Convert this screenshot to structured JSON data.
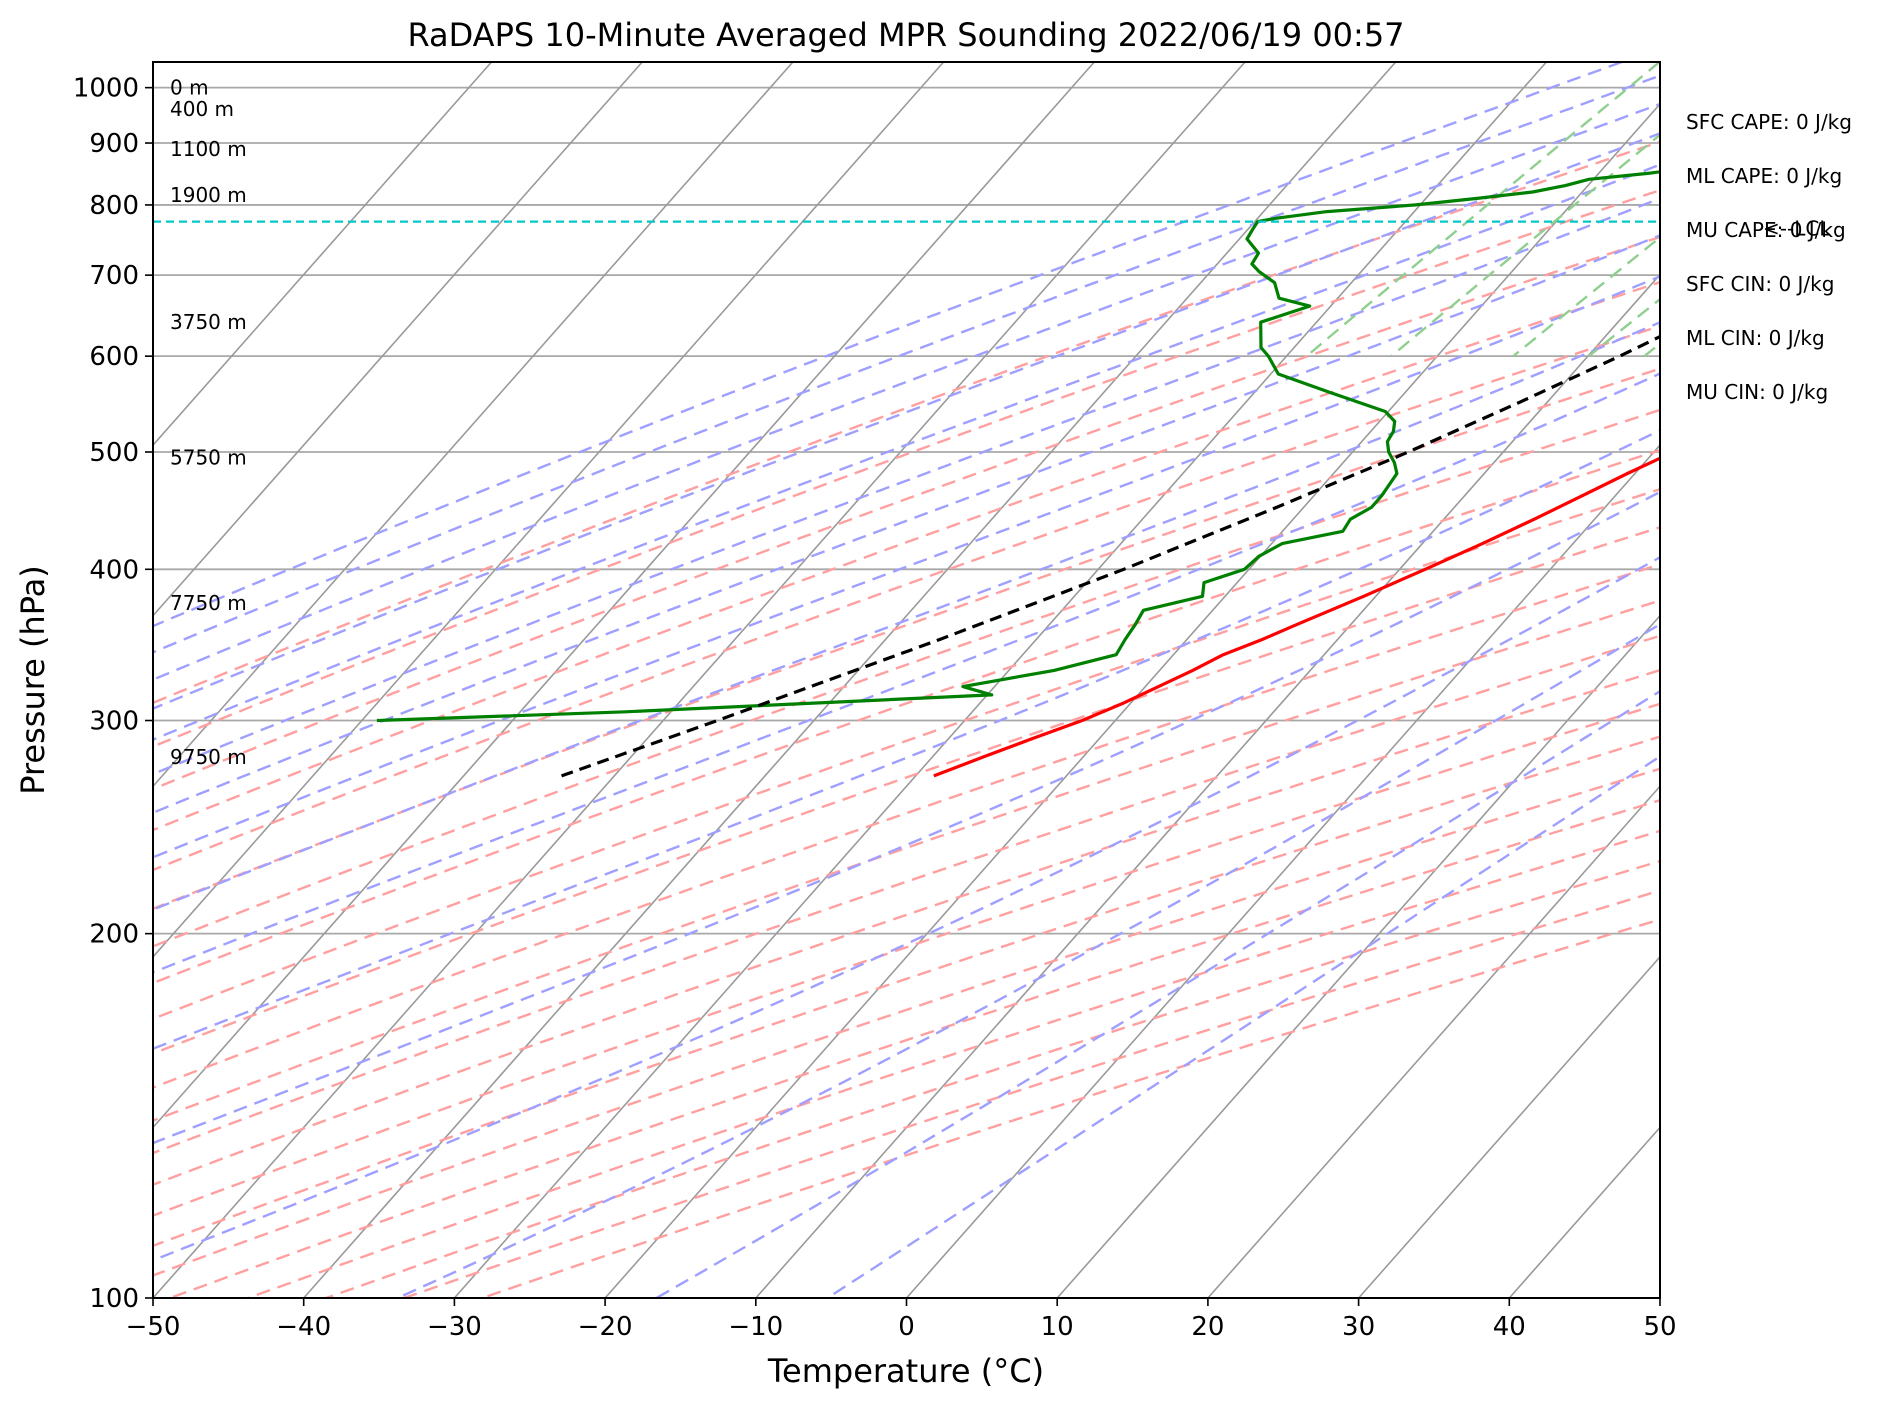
{
  "chart_data": {
    "type": "line",
    "title": "RaDAPS 10-Minute Averaged MPR Sounding 2022/06/19 00:57",
    "xlabel": "Temperature (°C)",
    "ylabel": "Pressure (hPa)",
    "xlim": [
      -50,
      50
    ],
    "ylim": [
      1050,
      100
    ],
    "y_scale": "log",
    "x_ticks": [
      -50,
      -40,
      -30,
      -20,
      -10,
      0,
      10,
      20,
      30,
      40,
      50
    ],
    "x_tick_labels": [
      "−50",
      "−40",
      "−30",
      "−20",
      "−10",
      "0",
      "10",
      "20",
      "30",
      "40",
      "50"
    ],
    "y_ticks": [
      1000,
      900,
      800,
      700,
      600,
      500,
      400,
      300,
      200,
      100
    ],
    "y_tick_labels": [
      "1000",
      "900",
      "800",
      "700",
      "600",
      "500",
      "400",
      "300",
      "200",
      "100"
    ],
    "grid": "horizontal at pressure ticks",
    "skew_lines": [
      -100,
      -90,
      -80,
      -70,
      -60,
      -50,
      -40,
      -30,
      -20,
      -10,
      0,
      10,
      20,
      30,
      40
    ],
    "dry_adiabats_theta_K": [
      263,
      273,
      283,
      293,
      303,
      313,
      323,
      333,
      343,
      353,
      363,
      373,
      383,
      393,
      403,
      413,
      423,
      433,
      443,
      453,
      463,
      473
    ],
    "moist_adiabats_start_C": [
      -25,
      -20,
      -15,
      -10,
      -5,
      0,
      5,
      10,
      15,
      20,
      25,
      30,
      35,
      40,
      45,
      50
    ],
    "mixing_ratios_gkg": [
      0.6,
      1,
      2,
      3,
      4,
      6,
      8,
      10,
      12,
      16,
      20
    ],
    "series": [
      {
        "name": "",
        "color": "#ff0000",
        "points": [
          [
            1000,
            29.5
          ],
          [
            980,
            28.2
          ],
          [
            960,
            27.2
          ],
          [
            930,
            26.0
          ],
          [
            900,
            25.1
          ],
          [
            880,
            23.6
          ],
          [
            860,
            22.7
          ],
          [
            840,
            21.8
          ],
          [
            830,
            21.4
          ],
          [
            820,
            20.9
          ],
          [
            800,
            20.2
          ],
          [
            780,
            19.4
          ],
          [
            760,
            18.7
          ],
          [
            740,
            17.8
          ],
          [
            720,
            16.9
          ],
          [
            700,
            16.3
          ],
          [
            680,
            15.3
          ],
          [
            660,
            13.9
          ],
          [
            640,
            12.4
          ],
          [
            620,
            11.0
          ],
          [
            600,
            9.8
          ],
          [
            580,
            8.4
          ],
          [
            560,
            7.2
          ],
          [
            540,
            5.5
          ],
          [
            520,
            3.5
          ],
          [
            500,
            1.3
          ],
          [
            480,
            -0.5
          ],
          [
            460,
            -2.2
          ],
          [
            440,
            -4.0
          ],
          [
            420,
            -6.0
          ],
          [
            400,
            -8.3
          ],
          [
            380,
            -10.8
          ],
          [
            360,
            -13.6
          ],
          [
            350,
            -15.0
          ],
          [
            340,
            -16.7
          ],
          [
            330,
            -17.8
          ],
          [
            310,
            -20.5
          ],
          [
            300,
            -22.2
          ],
          [
            290,
            -24.4
          ],
          [
            280,
            -26.6
          ],
          [
            270,
            -28.8
          ]
        ]
      },
      {
        "name": "",
        "color": "#008000",
        "points": [
          [
            1000,
            11.3
          ],
          [
            998,
            8.5
          ],
          [
            995,
            5.6
          ],
          [
            990,
            3.6
          ],
          [
            980,
            2.0
          ],
          [
            970,
            2.4
          ],
          [
            960,
            1.8
          ],
          [
            950,
            1.5
          ],
          [
            940,
            0.9
          ],
          [
            930,
            0.9
          ],
          [
            920,
            -0.6
          ],
          [
            910,
            -2.4
          ],
          [
            900,
            -3.8
          ],
          [
            885,
            -6.6
          ],
          [
            870,
            -10.2
          ],
          [
            860,
            -13.8
          ],
          [
            850,
            -16.6
          ],
          [
            840,
            -20.3
          ],
          [
            830,
            -21.5
          ],
          [
            820,
            -23.3
          ],
          [
            810,
            -26.6
          ],
          [
            800,
            -30.3
          ],
          [
            790,
            -35.8
          ],
          [
            780,
            -38.8
          ],
          [
            775,
            -39.8
          ],
          [
            765,
            -39.7
          ],
          [
            750,
            -39.5
          ],
          [
            730,
            -37.9
          ],
          [
            715,
            -37.7
          ],
          [
            705,
            -36.8
          ],
          [
            690,
            -35.1
          ],
          [
            670,
            -33.9
          ],
          [
            660,
            -31.4
          ],
          [
            640,
            -33.7
          ],
          [
            610,
            -32.2
          ],
          [
            600,
            -31.2
          ],
          [
            580,
            -29.5
          ],
          [
            560,
            -25.0
          ],
          [
            540,
            -20.2
          ],
          [
            530,
            -19.0
          ],
          [
            520,
            -18.5
          ],
          [
            510,
            -18.3
          ],
          [
            500,
            -17.6
          ],
          [
            490,
            -16.6
          ],
          [
            480,
            -15.8
          ],
          [
            460,
            -15.5
          ],
          [
            450,
            -15.5
          ],
          [
            440,
            -16.2
          ],
          [
            430,
            -16.0
          ],
          [
            420,
            -19.3
          ],
          [
            410,
            -20.1
          ],
          [
            400,
            -20.3
          ],
          [
            390,
            -22.2
          ],
          [
            380,
            -21.5
          ],
          [
            370,
            -24.6
          ],
          [
            360,
            -24.3
          ],
          [
            350,
            -24.1
          ],
          [
            340,
            -23.8
          ],
          [
            330,
            -27.0
          ],
          [
            320,
            -32.1
          ],
          [
            315,
            -29.7
          ],
          [
            305,
            -53.0
          ],
          [
            300,
            -69.0
          ]
        ]
      },
      {
        "name": "",
        "color": "#000000",
        "dashed": true,
        "points": [
          [
            1000,
            29.5
          ],
          [
            980,
            27.2
          ],
          [
            960,
            25.1
          ],
          [
            940,
            22.8
          ],
          [
            920,
            20.4
          ],
          [
            900,
            18.0
          ],
          [
            880,
            15.5
          ],
          [
            860,
            13.0
          ],
          [
            840,
            10.5
          ],
          [
            820,
            8.0
          ],
          [
            800,
            5.4
          ],
          [
            785,
            3.4
          ],
          [
            775,
            2.2
          ],
          [
            770,
            2.1
          ],
          [
            750,
            1.1
          ],
          [
            700,
            -1.6
          ],
          [
            650,
            -4.6
          ],
          [
            600,
            -7.9
          ],
          [
            550,
            -11.8
          ],
          [
            500,
            -16.3
          ],
          [
            450,
            -21.8
          ],
          [
            400,
            -28.3
          ],
          [
            350,
            -36.4
          ],
          [
            300,
            -46.4
          ],
          [
            270,
            -53.5
          ]
        ]
      }
    ],
    "lcl": {
      "pressure": 775,
      "label": "<--LCL"
    },
    "height_labels": [
      {
        "pressure": 1000,
        "text": "0 m"
      },
      {
        "pressure": 960,
        "text": "400 m"
      },
      {
        "pressure": 890,
        "text": "1100 m"
      },
      {
        "pressure": 815,
        "text": "1900 m"
      },
      {
        "pressure": 640,
        "text": "3750 m"
      },
      {
        "pressure": 495,
        "text": "5750 m"
      },
      {
        "pressure": 375,
        "text": "7750 m"
      },
      {
        "pressure": 280,
        "text": "9750 m"
      }
    ],
    "indices": [
      "SFC CAPE: 0 J/kg",
      "ML CAPE: 0 J/kg",
      "MU CAPE: 0 J/kg",
      "SFC CIN: 0 J/kg",
      "ML CIN: 0 J/kg",
      "MU CIN: 0 J/kg"
    ],
    "colors": {
      "dry_adiabat": "#ff9f9f",
      "moist_adiabat": "#9f9fff",
      "mixing_ratio": "#8fcf8f",
      "isotherm": "#9a9a9a",
      "lcl": "#00c8c8"
    }
  }
}
